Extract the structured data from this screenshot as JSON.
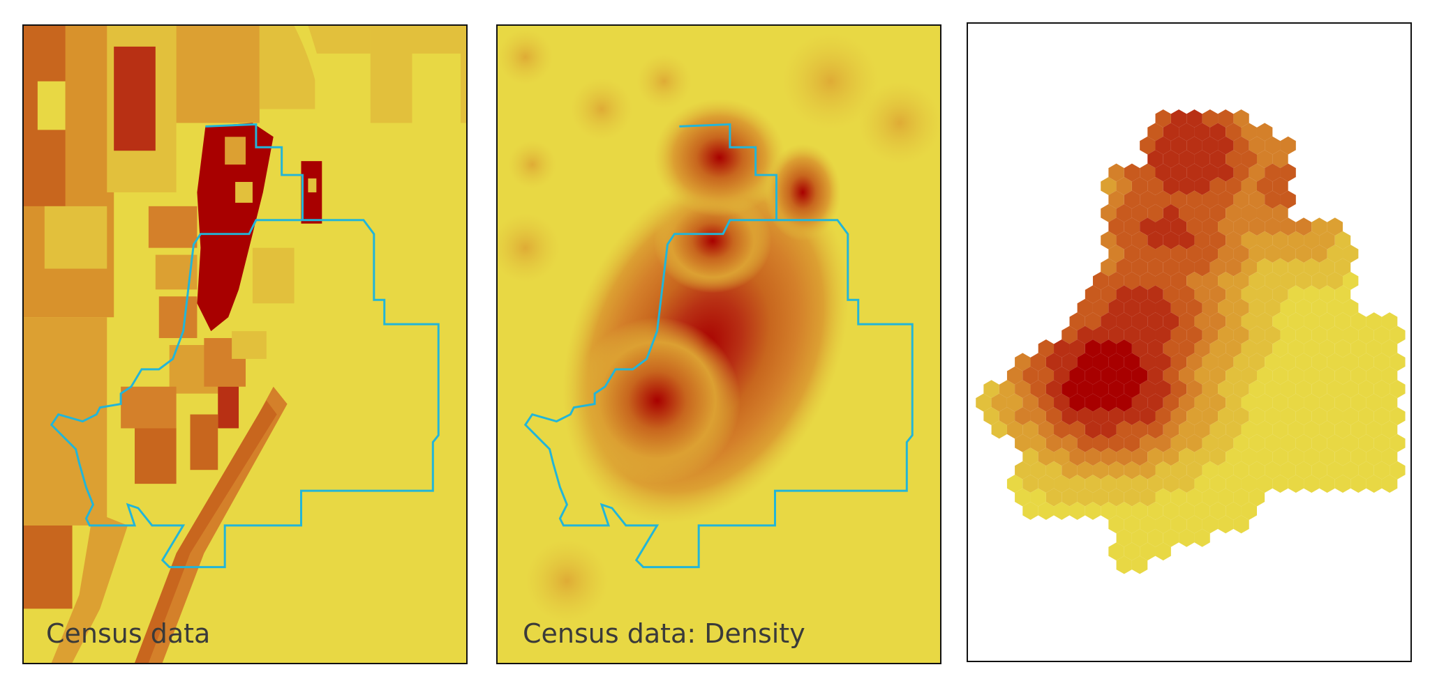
{
  "panels": {
    "census": {
      "caption": "Census data"
    },
    "density": {
      "caption": "Census data: Density"
    },
    "hexbin": {
      "caption": ""
    }
  },
  "colors": {
    "boundary": "#22b5d8",
    "ramp": [
      "#e8d844",
      "#e2c03c",
      "#dca032",
      "#d4802a",
      "#c85a1e",
      "#b83014",
      "#a80000"
    ]
  }
}
